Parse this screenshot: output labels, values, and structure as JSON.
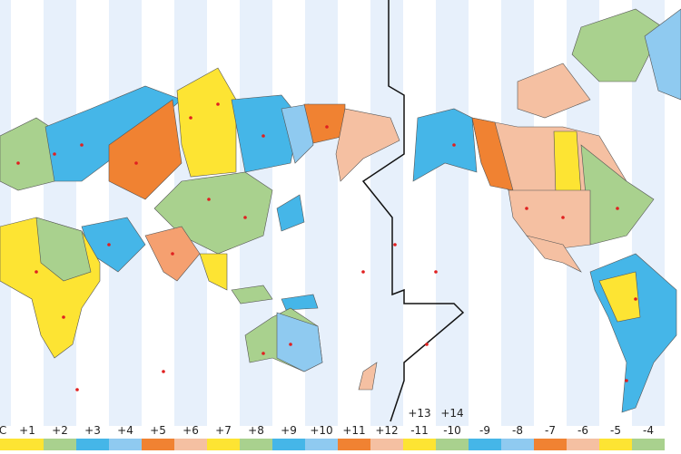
{
  "zones": [
    {
      "lines": [
        "C"
      ],
      "color": "#fde433"
    },
    {
      "lines": [
        "+1"
      ],
      "color": "#fde433"
    },
    {
      "lines": [
        "+2"
      ],
      "color": "#a9d18e"
    },
    {
      "lines": [
        "+3"
      ],
      "color": "#45b6e8"
    },
    {
      "lines": [
        "+4"
      ],
      "color": "#8fcaf0"
    },
    {
      "lines": [
        "+5"
      ],
      "color": "#f08232"
    },
    {
      "lines": [
        "+6"
      ],
      "color": "#f5c0a2"
    },
    {
      "lines": [
        "+7"
      ],
      "color": "#fde433"
    },
    {
      "lines": [
        "+8"
      ],
      "color": "#a9d18e"
    },
    {
      "lines": [
        "+9"
      ],
      "color": "#45b6e8"
    },
    {
      "lines": [
        "+10"
      ],
      "color": "#8fcaf0"
    },
    {
      "lines": [
        "+11"
      ],
      "color": "#f08232"
    },
    {
      "lines": [
        "+12"
      ],
      "color": "#f5c0a2"
    },
    {
      "lines": [
        "+13",
        "-11"
      ],
      "color": "#fde433"
    },
    {
      "lines": [
        "+14",
        "-10"
      ],
      "color": "#a9d18e"
    },
    {
      "lines": [
        "-9"
      ],
      "color": "#45b6e8"
    },
    {
      "lines": [
        "-8"
      ],
      "color": "#8fcaf0"
    },
    {
      "lines": [
        "-7"
      ],
      "color": "#f08232"
    },
    {
      "lines": [
        "-6"
      ],
      "color": "#f5c0a2"
    },
    {
      "lines": [
        "-5"
      ],
      "color": "#fde433"
    },
    {
      "lines": [
        "-4"
      ],
      "color": "#a9d18e"
    }
  ]
}
